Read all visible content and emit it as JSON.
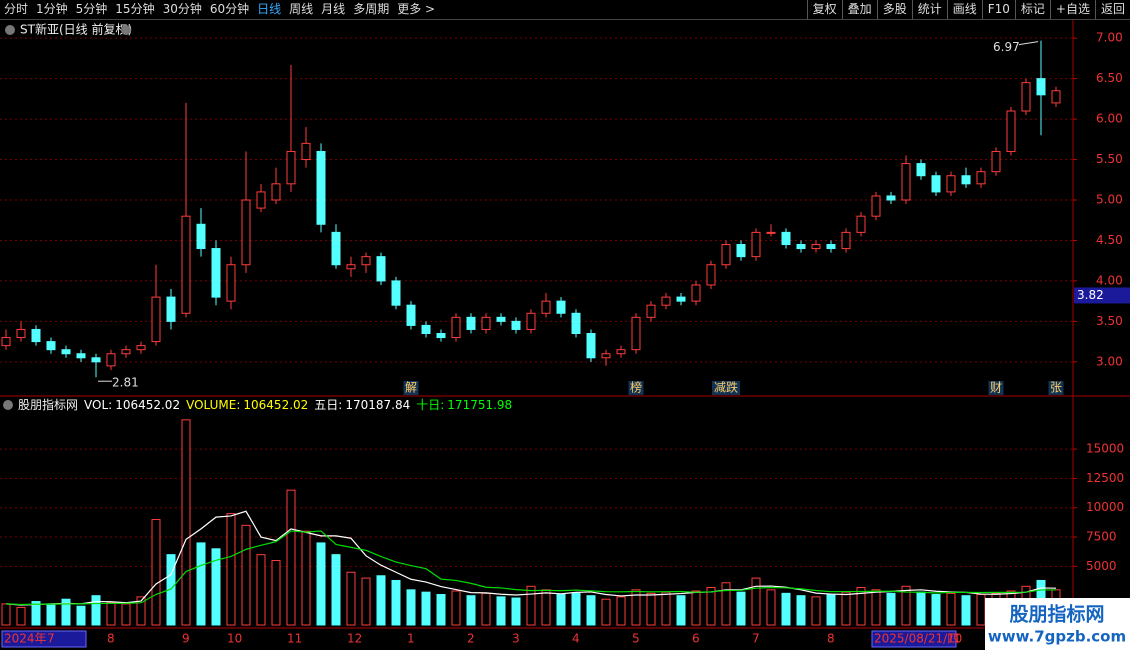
{
  "toolbar": {
    "left": [
      "分时",
      "1分钟",
      "5分钟",
      "15分钟",
      "30分钟",
      "60分钟",
      "日线",
      "周线",
      "月线",
      "多周期",
      "更多 >"
    ],
    "active": 6,
    "right": [
      "复权",
      "叠加",
      "多股",
      "统计",
      "画线",
      "F10",
      "标记",
      "+自选",
      "返回"
    ]
  },
  "watermark": {
    "title": "股朋指标网",
    "url": "www.7gpzb.com"
  },
  "chart_data": [
    {
      "type": "candlestick",
      "title": "ST新亚(日线 前复权)",
      "up_color": "#ff3c3c",
      "down_color": "#54ffff",
      "ylim": [
        2.59,
        7.2
      ],
      "yticks": [
        {
          "value": 3,
          "label": "3.00"
        },
        {
          "value": 3.5,
          "label": "3.50"
        },
        {
          "value": 4,
          "label": "4.00"
        },
        {
          "value": 4.5,
          "label": "4.50"
        },
        {
          "value": 5,
          "label": "5.00"
        },
        {
          "value": 5.5,
          "label": "5.50"
        },
        {
          "value": 6,
          "label": "6.00"
        },
        {
          "value": 6.5,
          "label": "6.50"
        },
        {
          "value": 7,
          "label": "7.00"
        }
      ],
      "grid": true,
      "open": [
        3.2,
        3.3,
        3.4,
        3.25,
        3.15,
        3.1,
        3.05,
        2.95,
        3.1,
        3.15,
        3.25,
        3.8,
        3.6,
        4.7,
        4.4,
        3.75,
        4.2,
        4.9,
        5.0,
        5.2,
        5.5,
        5.6,
        4.6,
        4.15,
        4.2,
        4.3,
        4.0,
        3.7,
        3.45,
        3.35,
        3.3,
        3.55,
        3.4,
        3.55,
        3.5,
        3.4,
        3.6,
        3.75,
        3.6,
        3.35,
        3.05,
        3.1,
        3.15,
        3.55,
        3.7,
        3.8,
        3.75,
        3.95,
        4.2,
        4.45,
        4.3,
        4.6,
        4.6,
        4.45,
        4.4,
        4.45,
        4.4,
        4.6,
        4.8,
        5.05,
        5.0,
        5.45,
        5.3,
        5.1,
        5.3,
        5.2,
        5.35,
        5.6,
        6.1,
        6.5,
        6.2
      ],
      "high": [
        3.4,
        3.5,
        3.45,
        3.3,
        3.2,
        3.15,
        3.1,
        3.15,
        3.2,
        3.25,
        4.2,
        3.9,
        6.2,
        4.9,
        4.5,
        4.3,
        5.6,
        5.2,
        5.4,
        6.67,
        5.9,
        5.7,
        4.7,
        4.3,
        4.35,
        4.35,
        4.05,
        3.75,
        3.5,
        3.4,
        3.6,
        3.6,
        3.6,
        3.6,
        3.55,
        3.65,
        3.85,
        3.8,
        3.65,
        3.4,
        3.15,
        3.2,
        3.6,
        3.75,
        3.85,
        3.85,
        4.0,
        4.25,
        4.5,
        4.5,
        4.65,
        4.7,
        4.65,
        4.5,
        4.5,
        4.5,
        4.65,
        4.85,
        5.1,
        5.1,
        5.55,
        5.5,
        5.35,
        5.35,
        5.4,
        5.4,
        5.65,
        6.15,
        6.5,
        6.97,
        6.4
      ],
      "low": [
        3.15,
        3.25,
        3.2,
        3.1,
        3.05,
        3.0,
        2.81,
        2.9,
        3.05,
        3.1,
        3.2,
        3.4,
        3.55,
        4.3,
        3.7,
        3.65,
        4.1,
        4.85,
        4.95,
        5.1,
        5.4,
        4.6,
        4.15,
        4.05,
        4.1,
        3.95,
        3.65,
        3.4,
        3.3,
        3.25,
        3.25,
        3.35,
        3.35,
        3.45,
        3.35,
        3.35,
        3.55,
        3.55,
        3.3,
        3.0,
        2.95,
        3.05,
        3.1,
        3.5,
        3.65,
        3.7,
        3.7,
        3.9,
        4.15,
        4.25,
        4.25,
        4.55,
        4.4,
        4.35,
        4.35,
        4.35,
        4.35,
        4.55,
        4.75,
        4.95,
        4.95,
        5.25,
        5.05,
        5.05,
        5.15,
        5.15,
        5.3,
        5.55,
        6.05,
        5.8,
        6.15
      ],
      "close": [
        3.3,
        3.4,
        3.25,
        3.15,
        3.1,
        3.05,
        3.0,
        3.1,
        3.15,
        3.2,
        3.8,
        3.5,
        4.8,
        4.4,
        3.8,
        4.2,
        5.0,
        5.1,
        5.2,
        5.6,
        5.7,
        4.7,
        4.2,
        4.2,
        4.3,
        4.0,
        3.7,
        3.45,
        3.35,
        3.3,
        3.55,
        3.4,
        3.55,
        3.5,
        3.4,
        3.6,
        3.75,
        3.6,
        3.35,
        3.05,
        3.1,
        3.15,
        3.55,
        3.7,
        3.8,
        3.75,
        3.95,
        4.2,
        4.45,
        4.3,
        4.6,
        4.6,
        4.45,
        4.4,
        4.45,
        4.4,
        4.6,
        4.8,
        5.05,
        5.0,
        5.45,
        5.3,
        5.1,
        5.3,
        5.2,
        5.35,
        5.6,
        6.1,
        6.45,
        6.3,
        6.35
      ],
      "event_labels": [
        null,
        null,
        null,
        null,
        null,
        null,
        null,
        null,
        null,
        null,
        null,
        null,
        null,
        null,
        null,
        null,
        null,
        null,
        null,
        null,
        null,
        null,
        null,
        null,
        null,
        null,
        null,
        "解",
        null,
        null,
        null,
        null,
        null,
        null,
        null,
        null,
        null,
        null,
        null,
        null,
        null,
        null,
        "榜",
        null,
        null,
        null,
        null,
        null,
        "减跌",
        null,
        null,
        null,
        null,
        null,
        null,
        null,
        null,
        null,
        null,
        null,
        null,
        null,
        null,
        null,
        null,
        null,
        "财",
        null,
        null,
        null,
        "张"
      ],
      "price_marker": 3.82
    },
    {
      "type": "volume",
      "title": "股朋指标网",
      "info": [
        {
          "name": "VOL:",
          "value": 106452.02,
          "color": "#ffffff"
        },
        {
          "name": "VOLUME:",
          "value": 106452.02,
          "color": "#ffff00"
        },
        {
          "name": "五日:",
          "value": 170187.84,
          "color": "#ffffff"
        },
        {
          "name": "十日:",
          "value": 171751.98,
          "color": "#00ff00"
        }
      ],
      "ylim": [
        0,
        19360
      ],
      "yticks": [
        5000,
        7500,
        10000,
        12500,
        15000
      ],
      "grid": true,
      "categories": [
        "2024年",
        null,
        null,
        "7",
        null,
        null,
        null,
        "8",
        null,
        null,
        null,
        null,
        "9",
        null,
        null,
        "10",
        null,
        null,
        null,
        "11",
        null,
        null,
        null,
        "12",
        null,
        null,
        null,
        "1",
        null,
        null,
        null,
        "2",
        null,
        null,
        "3",
        null,
        null,
        null,
        "4",
        null,
        null,
        null,
        "5",
        null,
        null,
        null,
        "6",
        null,
        null,
        null,
        "7",
        null,
        null,
        null,
        null,
        "8",
        null,
        null,
        "2025/08/21/四",
        null,
        null,
        null,
        null,
        "10",
        null,
        null,
        null,
        null,
        null,
        null,
        null
      ],
      "values": [
        1800,
        1500,
        2000,
        1700,
        2200,
        1600,
        2500,
        1900,
        1800,
        2400,
        9000,
        6000,
        17500,
        7000,
        6500,
        9500,
        8500,
        6000,
        5500,
        11500,
        8000,
        7000,
        6000,
        4500,
        4000,
        4200,
        3800,
        3000,
        2800,
        2600,
        2900,
        2500,
        2700,
        2400,
        2300,
        3300,
        3000,
        2600,
        2700,
        2500,
        2200,
        2400,
        3000,
        2700,
        2800,
        2500,
        2900,
        3200,
        3600,
        2800,
        4000,
        3000,
        2700,
        2500,
        2400,
        2600,
        2800,
        3200,
        3000,
        2700,
        3300,
        2800,
        2600,
        2700,
        2500,
        2600,
        2700,
        2900,
        3300,
        3800,
        3000
      ],
      "series": [
        {
          "color": "#ffffff",
          "values": [
            1800,
            1700,
            1750,
            1800,
            1850,
            1800,
            2000,
            1980,
            1900,
            2040,
            3500,
            4300,
            7300,
            8200,
            9200,
            9300,
            9700,
            7500,
            7200,
            8200,
            7900,
            7600,
            7600,
            7400,
            5900,
            5100,
            4500,
            3900,
            3660,
            3280,
            3020,
            2760,
            2740,
            2620,
            2560,
            2640,
            2740,
            2660,
            2780,
            2820,
            2600,
            2480,
            2560,
            2560,
            2620,
            2680,
            2780,
            2820,
            3000,
            3000,
            3300,
            3320,
            3220,
            3000,
            2720,
            2640,
            2600,
            2700,
            2800,
            2860,
            2940,
            3000,
            2880,
            2820,
            2780,
            2640,
            2620,
            2680,
            2800,
            3160,
            3140
          ]
        },
        {
          "color": "#00dd00",
          "values": [
            1800,
            1750,
            1770,
            1780,
            1800,
            1800,
            1830,
            1840,
            1850,
            1890,
            2610,
            3060,
            4560,
            5080,
            5520,
            5850,
            6450,
            6800,
            7110,
            8020,
            7920,
            8020,
            6870,
            6620,
            6370,
            5840,
            5370,
            5070,
            4800,
            3910,
            3800,
            3550,
            3220,
            3160,
            3020,
            2930,
            2960,
            2920,
            2980,
            2910,
            2840,
            2830,
            2860,
            2830,
            2840,
            2860,
            2790,
            2830,
            2940,
            2960,
            3140,
            3200,
            3170,
            3080,
            2940,
            2840,
            2850,
            2860,
            2880,
            2880,
            2810,
            2790,
            2730,
            2780,
            2780,
            2770,
            2780,
            2780,
            2800,
            2990,
            2990
          ]
        }
      ]
    }
  ]
}
